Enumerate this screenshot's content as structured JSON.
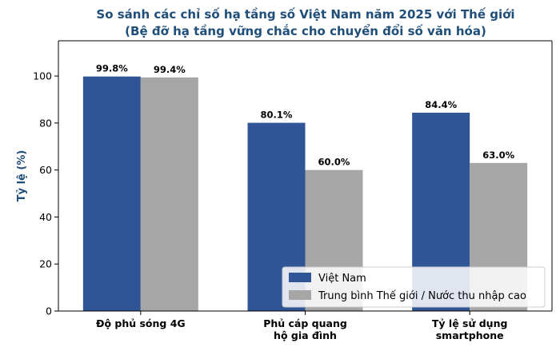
{
  "chart_data": {
    "type": "bar",
    "title": "So sánh các chỉ số hạ tầng số Việt Nam năm 2025 với Thế giới",
    "subtitle": "(Bệ đỡ hạ tầng vững chắc cho chuyển đổi số văn hóa)",
    "xlabel": "",
    "ylabel": "Tỷ lệ (%)",
    "ylim": [
      0,
      115
    ],
    "yticks": [
      0,
      20,
      40,
      60,
      80,
      100
    ],
    "grid": false,
    "legend_position": "bottom-right",
    "categories": [
      [
        "Độ phủ sóng 4G"
      ],
      [
        "Phủ cáp quang",
        "hộ gia đình"
      ],
      [
        "Tỷ lệ sử dụng",
        "smartphone"
      ]
    ],
    "series": [
      {
        "name": "Việt Nam",
        "color": "#2f5597",
        "values": [
          99.8,
          80.1,
          84.4
        ],
        "labels": [
          "99.8%",
          "80.1%",
          "84.4%"
        ]
      },
      {
        "name": "Trung bình Thế giới / Nước thu nhập cao",
        "color": "#a6a6a6",
        "values": [
          99.4,
          60.0,
          63.0
        ],
        "labels": [
          "99.4%",
          "60.0%",
          "63.0%"
        ]
      }
    ]
  }
}
